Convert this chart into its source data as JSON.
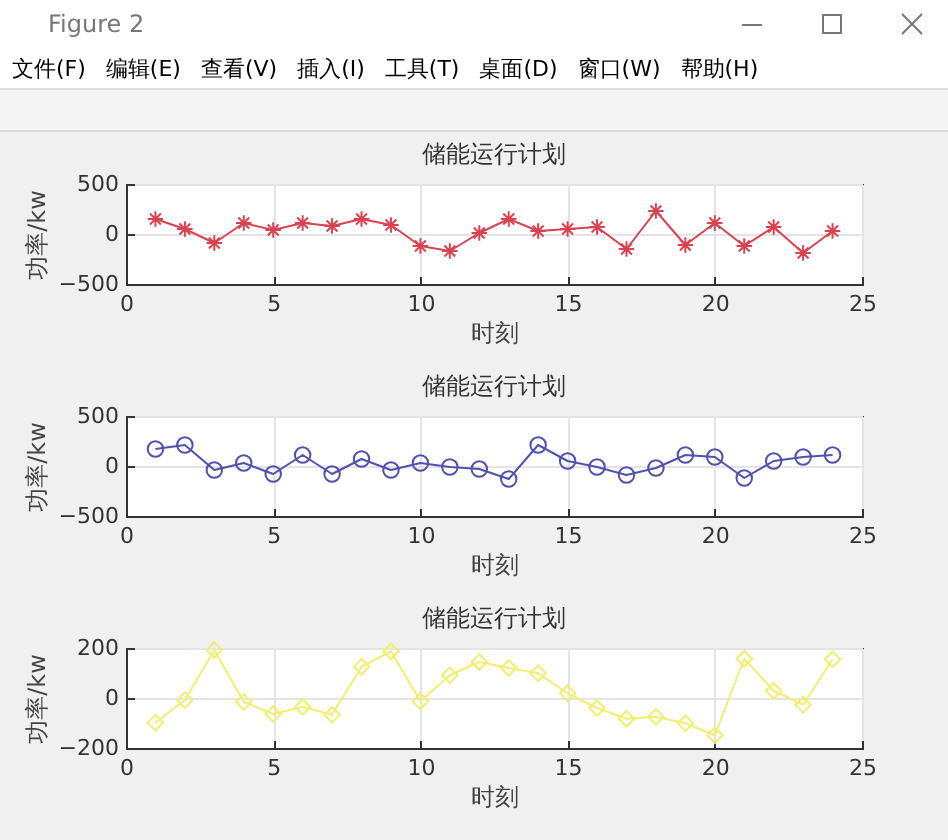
{
  "chart_data": [
    {
      "type": "other",
      "title": "Figure 2",
      "annotations": [
        "文件(F)",
        "编辑(E)",
        "查看(V)",
        "插入(I)",
        "工具(T)",
        "桌面(D)",
        "窗口(W)",
        "帮助(H)"
      ]
    },
    {
      "type": "line",
      "title": "储能运行计划",
      "xlabel": "时刻",
      "ylabel": "功率/kw",
      "x": [
        1,
        2,
        3,
        4,
        5,
        6,
        7,
        8,
        9,
        10,
        11,
        12,
        13,
        14,
        15,
        16,
        17,
        18,
        19,
        20,
        21,
        22,
        23,
        24
      ],
      "series": [
        {
          "color": "#d9434f",
          "values": [
            150,
            50,
            -90,
            110,
            40,
            110,
            80,
            150,
            90,
            -120,
            -170,
            10,
            150,
            30,
            50,
            70,
            -150,
            230,
            -110,
            110,
            -120,
            70,
            -190,
            30
          ]
        }
      ],
      "xlim": [
        0,
        25
      ],
      "xticks": [
        0,
        5,
        10,
        15,
        20,
        25
      ],
      "ylim": [
        -500,
        500
      ],
      "yticks": [
        -500,
        0,
        500
      ],
      "grid": true,
      "marker": "cross",
      "line_style": "solid"
    },
    {
      "type": "line",
      "title": "储能运行计划",
      "xlabel": "时刻",
      "ylabel": "功率/kw",
      "x": [
        1,
        2,
        3,
        4,
        5,
        6,
        7,
        8,
        9,
        10,
        11,
        12,
        13,
        14,
        15,
        16,
        17,
        18,
        19,
        20,
        21,
        22,
        23,
        24
      ],
      "series": [
        {
          "color": "#5050b0",
          "values": [
            170,
            210,
            -40,
            30,
            -80,
            110,
            -80,
            70,
            -40,
            30,
            -10,
            -30,
            -130,
            210,
            50,
            -10,
            -90,
            -20,
            110,
            90,
            -120,
            50,
            90,
            110
          ]
        }
      ],
      "xlim": [
        0,
        25
      ],
      "xticks": [
        0,
        5,
        10,
        15,
        20,
        25
      ],
      "ylim": [
        -500,
        500
      ],
      "yticks": [
        -500,
        0,
        500
      ],
      "grid": true,
      "marker": "circle",
      "line_style": "solid"
    },
    {
      "type": "line",
      "title": "储能运行计划",
      "xlabel": "时刻",
      "ylabel": "功率/kw",
      "x": [
        1,
        2,
        3,
        4,
        5,
        6,
        7,
        8,
        9,
        10,
        11,
        12,
        13,
        14,
        15,
        16,
        17,
        18,
        19,
        20,
        21,
        22,
        23,
        24
      ],
      "series": [
        {
          "color": "#f2ee70",
          "values": [
            -99,
            -8,
            192,
            -16,
            -64,
            -35,
            -67,
            125,
            187,
            -13,
            91,
            144,
            120,
            99,
            19,
            -40,
            -83,
            -75,
            -101,
            -149,
            157,
            29,
            -27,
            155
          ]
        }
      ],
      "xlim": [
        0,
        25
      ],
      "xticks": [
        0,
        5,
        10,
        15,
        20,
        25
      ],
      "ylim": [
        -200,
        200
      ],
      "yticks": [
        -200,
        0,
        200
      ],
      "grid": true,
      "marker": "diamond",
      "line_style": "solid"
    }
  ]
}
